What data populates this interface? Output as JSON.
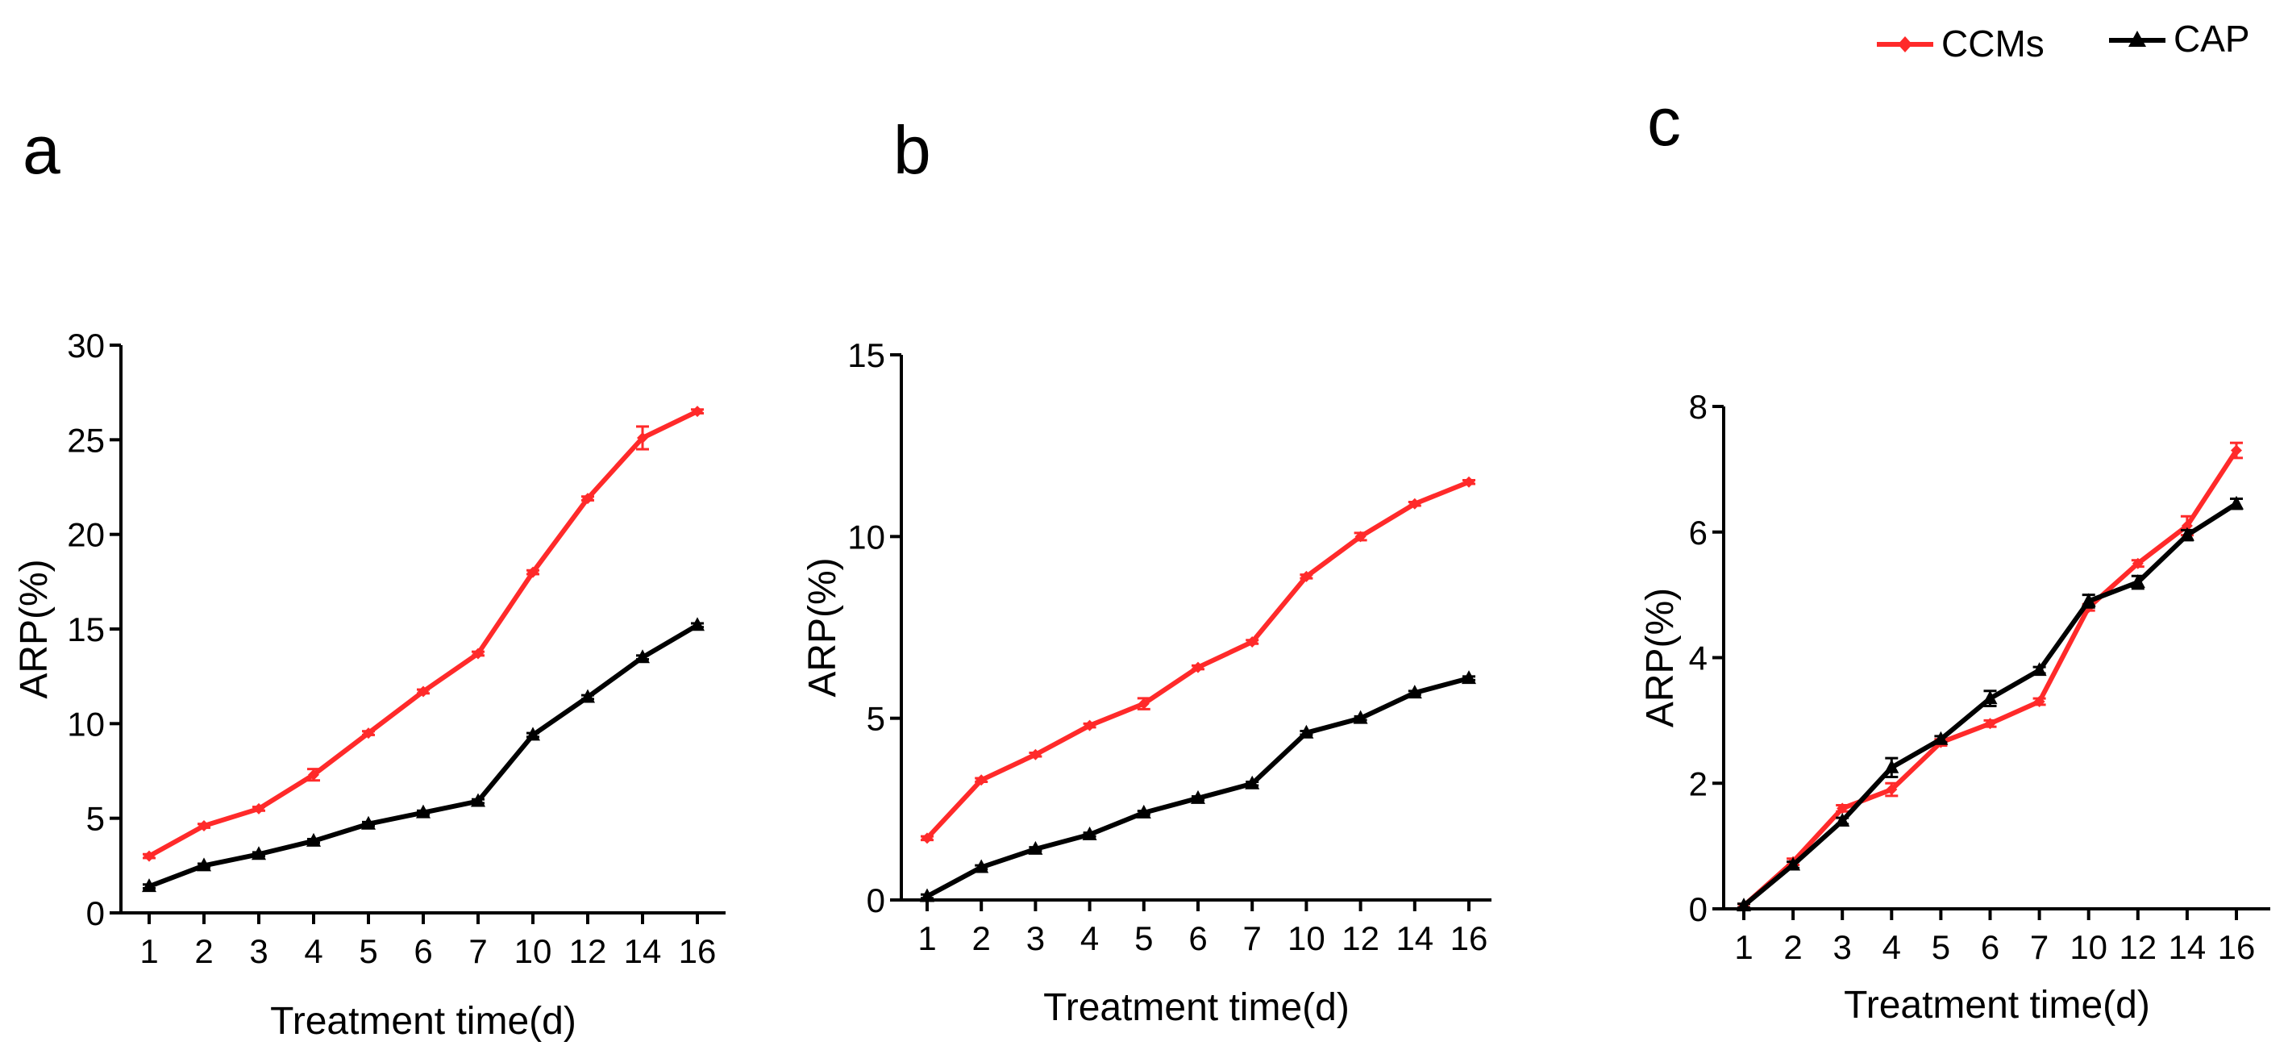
{
  "legend": [
    {
      "name": "CCMs",
      "color": "#ff2a2a",
      "marker": "diamond"
    },
    {
      "name": "CAP",
      "color": "#000000",
      "marker": "triangle"
    }
  ],
  "chart_data": [
    {
      "panel": "a",
      "type": "line",
      "categories": [
        "1",
        "2",
        "3",
        "4",
        "5",
        "6",
        "7",
        "10",
        "12",
        "14",
        "16"
      ],
      "xlabel": "Treatment time(d)",
      "ylabel": "ARP(%)",
      "ylim": [
        0,
        30
      ],
      "yticks": [
        0,
        5,
        10,
        15,
        20,
        25,
        30
      ],
      "series": [
        {
          "name": "CCMs",
          "color": "#ff2a2a",
          "marker": "diamond",
          "values": [
            3.0,
            4.6,
            5.5,
            7.3,
            9.5,
            11.7,
            13.7,
            18.0,
            21.9,
            25.1,
            26.5
          ],
          "errors": [
            0.1,
            0.1,
            0.1,
            0.3,
            0.1,
            0.1,
            0.1,
            0.1,
            0.1,
            0.6,
            0.1
          ]
        },
        {
          "name": "CAP",
          "color": "#000000",
          "marker": "triangle",
          "values": [
            1.4,
            2.5,
            3.1,
            3.8,
            4.7,
            5.3,
            5.9,
            9.4,
            11.4,
            13.5,
            15.2
          ],
          "errors": [
            0.1,
            0.1,
            0.1,
            0.1,
            0.1,
            0.1,
            0.1,
            0.1,
            0.1,
            0.1,
            0.1
          ]
        }
      ]
    },
    {
      "panel": "b",
      "type": "line",
      "categories": [
        "1",
        "2",
        "3",
        "4",
        "5",
        "6",
        "7",
        "10",
        "12",
        "14",
        "16"
      ],
      "xlabel": "Treatment time(d)",
      "ylabel": "ARP(%)",
      "ylim": [
        0,
        15
      ],
      "yticks": [
        0,
        5,
        10,
        15
      ],
      "series": [
        {
          "name": "CCMs",
          "color": "#ff2a2a",
          "marker": "diamond",
          "values": [
            1.7,
            3.3,
            4.0,
            4.8,
            5.4,
            6.4,
            7.1,
            8.9,
            10.0,
            10.9,
            11.5
          ],
          "errors": [
            0.05,
            0.05,
            0.05,
            0.05,
            0.15,
            0.05,
            0.05,
            0.05,
            0.1,
            0.05,
            0.05
          ]
        },
        {
          "name": "CAP",
          "color": "#000000",
          "marker": "triangle",
          "values": [
            0.1,
            0.9,
            1.4,
            1.8,
            2.4,
            2.8,
            3.2,
            4.6,
            5.0,
            5.7,
            6.1
          ],
          "errors": [
            0.05,
            0.05,
            0.05,
            0.05,
            0.05,
            0.05,
            0.05,
            0.05,
            0.05,
            0.05,
            0.05
          ]
        }
      ]
    },
    {
      "panel": "c",
      "type": "line",
      "categories": [
        "1",
        "2",
        "3",
        "4",
        "5",
        "6",
        "7",
        "10",
        "12",
        "14",
        "16"
      ],
      "xlabel": "Treatment time(d)",
      "ylabel": "ARP(%)",
      "ylim": [
        0,
        8
      ],
      "yticks": [
        0,
        2,
        4,
        6,
        8
      ],
      "series": [
        {
          "name": "CCMs",
          "color": "#ff2a2a",
          "marker": "diamond",
          "values": [
            0.05,
            0.75,
            1.6,
            1.9,
            2.65,
            2.95,
            3.3,
            4.8,
            5.5,
            6.1,
            7.3
          ],
          "errors": [
            0.03,
            0.05,
            0.05,
            0.1,
            0.05,
            0.05,
            0.05,
            0.05,
            0.05,
            0.15,
            0.12
          ]
        },
        {
          "name": "CAP",
          "color": "#000000",
          "marker": "triangle",
          "values": [
            0.05,
            0.7,
            1.4,
            2.25,
            2.7,
            3.35,
            3.8,
            4.9,
            5.2,
            5.95,
            6.45
          ],
          "errors": [
            0.03,
            0.05,
            0.05,
            0.15,
            0.05,
            0.12,
            0.05,
            0.1,
            0.1,
            0.08,
            0.08
          ]
        }
      ]
    }
  ]
}
